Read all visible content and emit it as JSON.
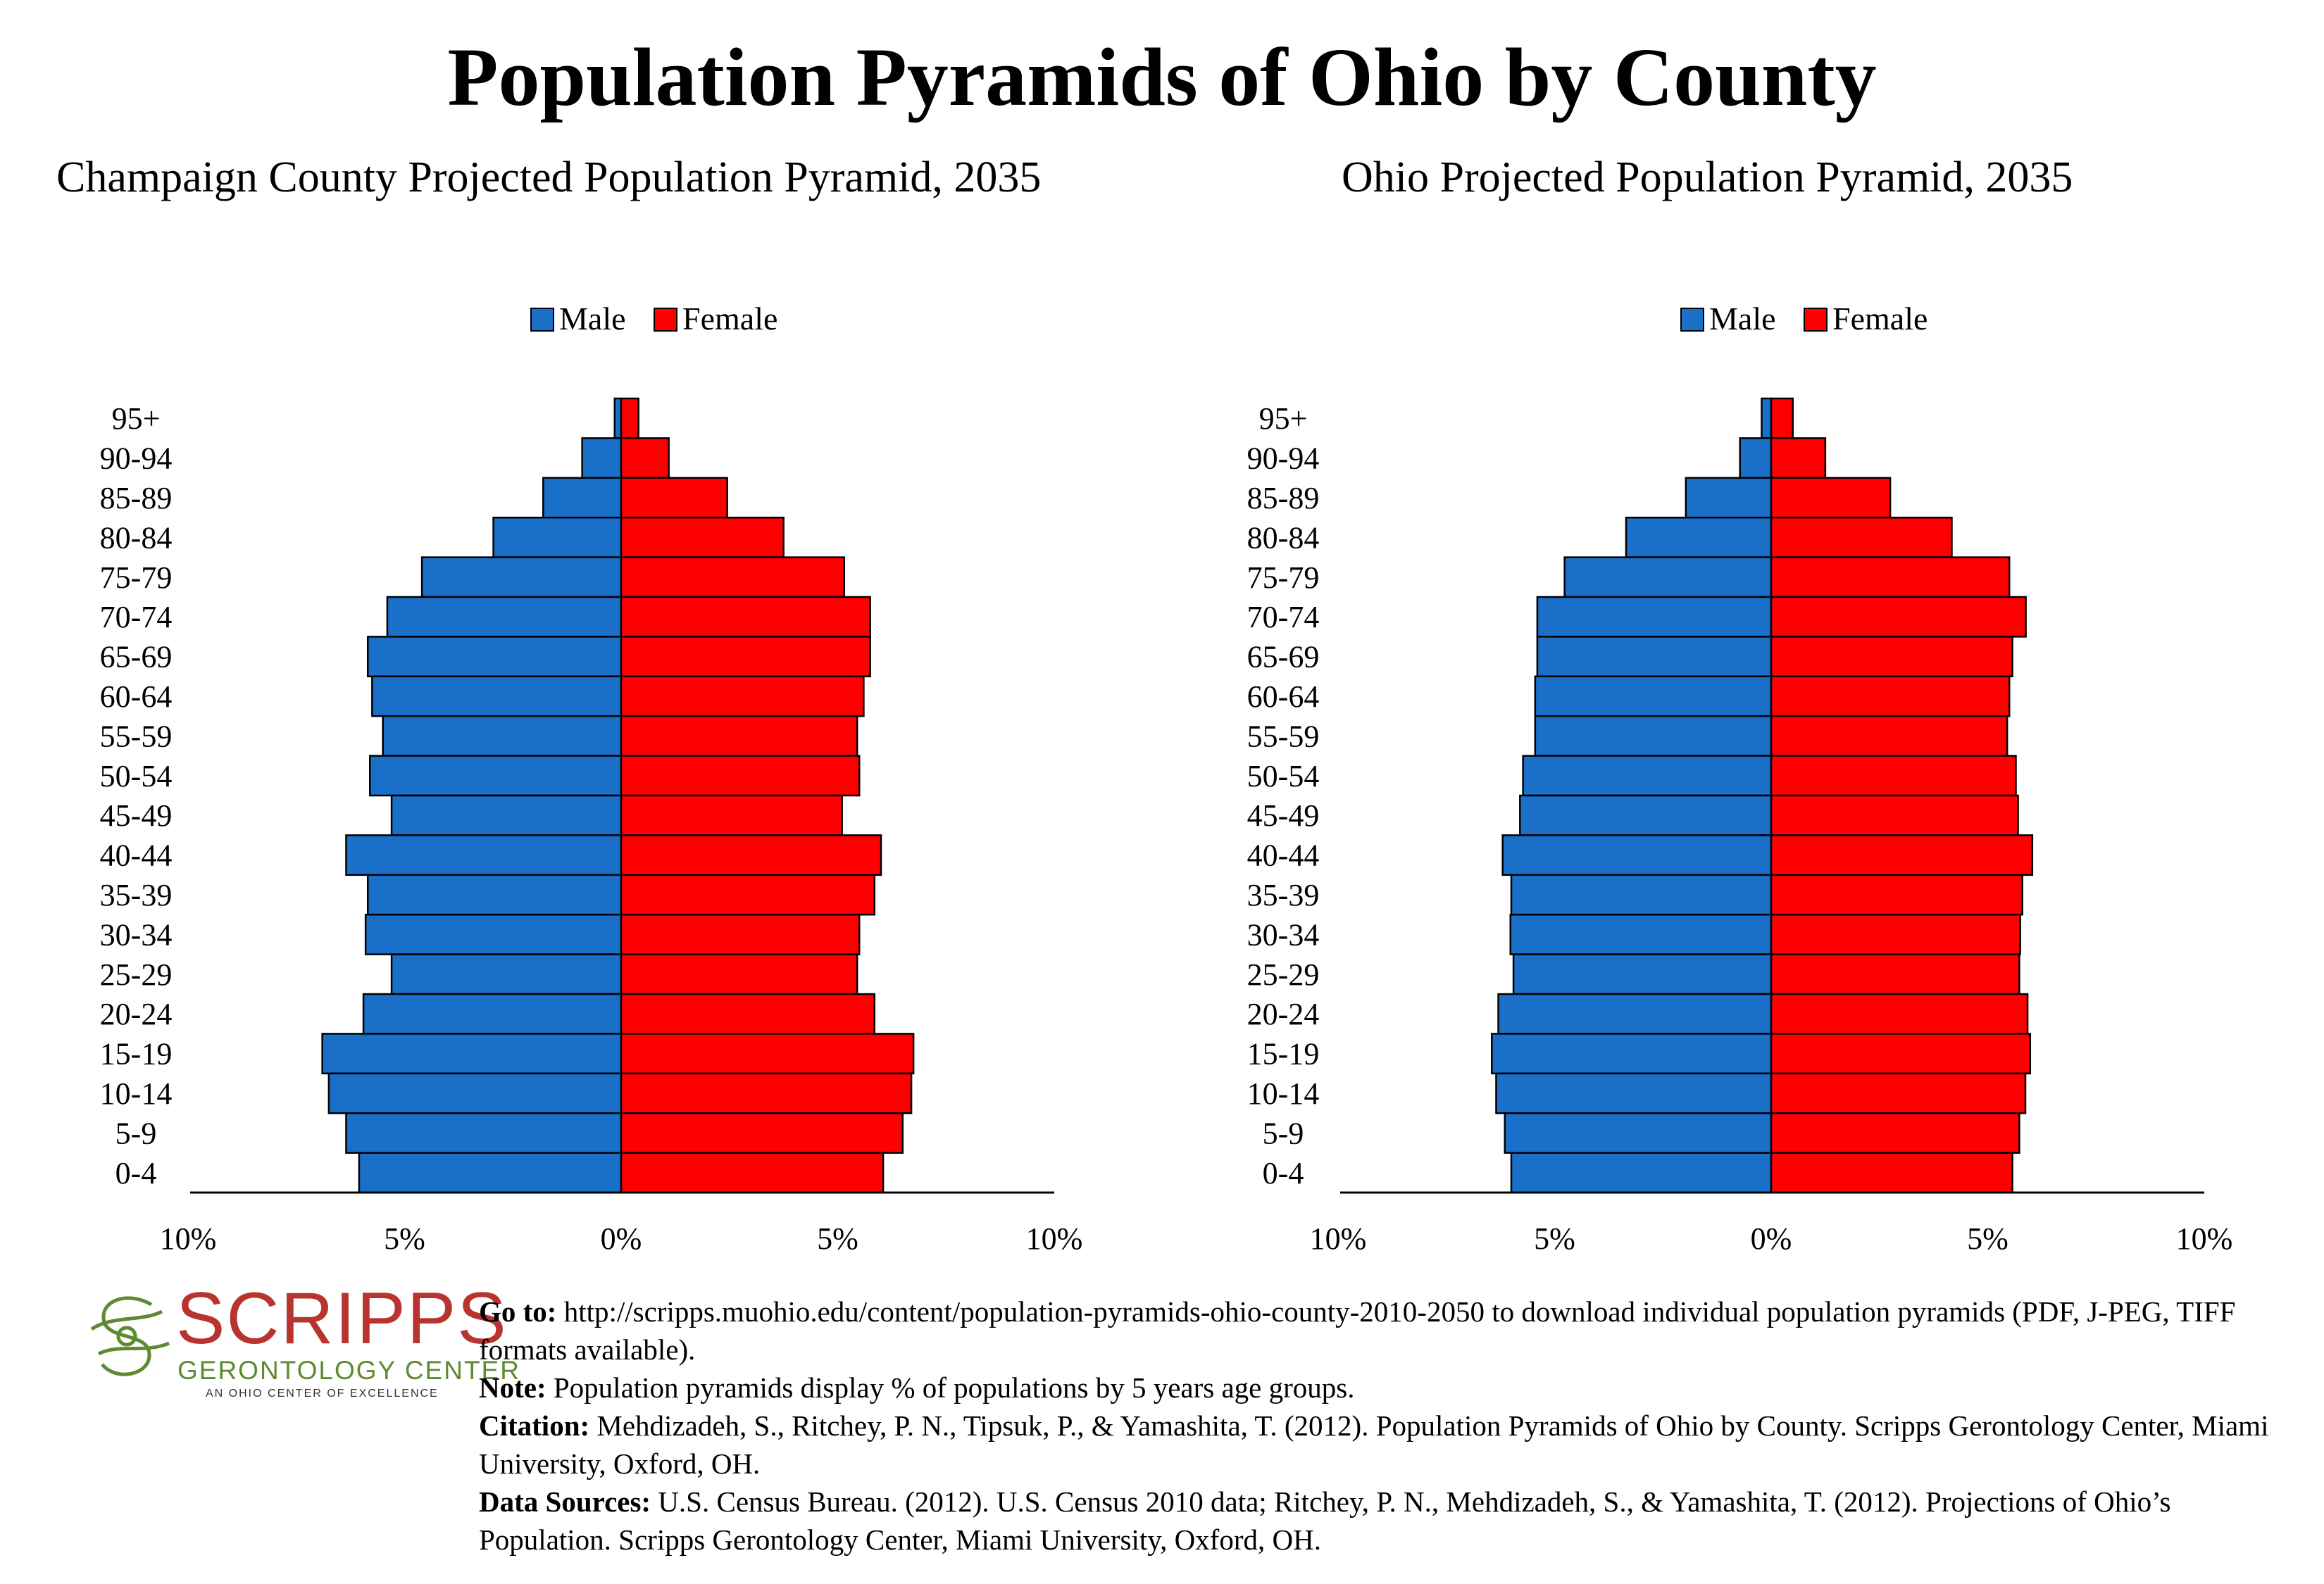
{
  "title": "Population Pyramids of Ohio by County",
  "chart_data": [
    {
      "type": "bar",
      "orientation": "horizontal-pyramid",
      "title": "Champaign County Projected Population Pyramid, 2035",
      "categories": [
        "95+",
        "90-94",
        "85-89",
        "80-84",
        "75-79",
        "70-74",
        "65-69",
        "60-64",
        "55-59",
        "50-54",
        "45-49",
        "40-44",
        "35-39",
        "30-34",
        "25-29",
        "20-24",
        "15-19",
        "10-14",
        "5-9",
        "0-4"
      ],
      "series": [
        {
          "name": "Male",
          "color": "#1a6fc9",
          "values": [
            0.15,
            0.9,
            1.8,
            2.95,
            4.6,
            5.4,
            5.85,
            5.75,
            5.5,
            5.8,
            5.3,
            6.35,
            5.85,
            5.9,
            5.3,
            5.95,
            6.9,
            6.75,
            6.35,
            6.05
          ]
        },
        {
          "name": "Female",
          "color": "#ff0000",
          "values": [
            0.4,
            1.1,
            2.45,
            3.75,
            5.15,
            5.75,
            5.75,
            5.6,
            5.45,
            5.5,
            5.1,
            6.0,
            5.85,
            5.5,
            5.45,
            5.85,
            6.75,
            6.7,
            6.5,
            6.05
          ]
        }
      ],
      "xlim": [
        -10,
        10
      ],
      "xticks": [
        "10%",
        "5%",
        "0%",
        "5%",
        "10%"
      ],
      "legend": "top-center"
    },
    {
      "type": "bar",
      "orientation": "horizontal-pyramid",
      "title": "Ohio Projected Population Pyramid, 2035",
      "categories": [
        "95+",
        "90-94",
        "85-89",
        "80-84",
        "75-79",
        "70-74",
        "65-69",
        "60-64",
        "55-59",
        "50-54",
        "45-49",
        "40-44",
        "35-39",
        "30-34",
        "25-29",
        "20-24",
        "15-19",
        "10-14",
        "5-9",
        "0-4"
      ],
      "series": [
        {
          "name": "Male",
          "color": "#1a6fc9",
          "values": [
            0.22,
            0.72,
            1.97,
            3.35,
            4.77,
            5.4,
            5.4,
            5.45,
            5.45,
            5.73,
            5.8,
            6.2,
            6.0,
            6.02,
            5.95,
            6.3,
            6.45,
            6.35,
            6.15,
            6.0
          ]
        },
        {
          "name": "Female",
          "color": "#ff0000",
          "values": [
            0.5,
            1.25,
            2.75,
            4.17,
            5.5,
            5.88,
            5.57,
            5.5,
            5.45,
            5.65,
            5.7,
            6.03,
            5.8,
            5.75,
            5.73,
            5.92,
            5.98,
            5.87,
            5.73,
            5.57
          ]
        }
      ],
      "xlim": [
        -10,
        10
      ],
      "xticks": [
        "10%",
        "5%",
        "0%",
        "5%",
        "10%"
      ],
      "legend": "top-center"
    }
  ],
  "logo": {
    "word": "SCRIPPS",
    "sub": "GERONTOLOGY CENTER",
    "tag": "AN OHIO CENTER OF EXCELLENCE",
    "colors": {
      "word": "#b7342f",
      "sub": "#5e8a31",
      "swirl": "#5e8a31"
    }
  },
  "notes": {
    "goto_label": "Go to:",
    "goto_text": " http://scripps.muohio.edu/content/population-pyramids-ohio-county-2010-2050 to download individual population pyramids (PDF, J-PEG, TIFF formats available).",
    "note_label": "Note:",
    "note_text": " Population pyramids display % of populations by 5 years age groups.",
    "citation_label": "Citation:",
    "citation_text": " Mehdizadeh, S., Ritchey, P. N., Tipsuk, P., & Yamashita, T. (2012). Population Pyramids of Ohio by County. Scripps Gerontology Center, Miami University, Oxford, OH.",
    "sources_label": "Data Sources:",
    "sources_text": " U.S. Census Bureau. (2012). U.S. Census 2010 data; Ritchey, P. N., Mehdizadeh, S., & Yamashita, T. (2012). Projections of Ohio’s Population. Scripps Gerontology Center, Miami University, Oxford, OH."
  }
}
